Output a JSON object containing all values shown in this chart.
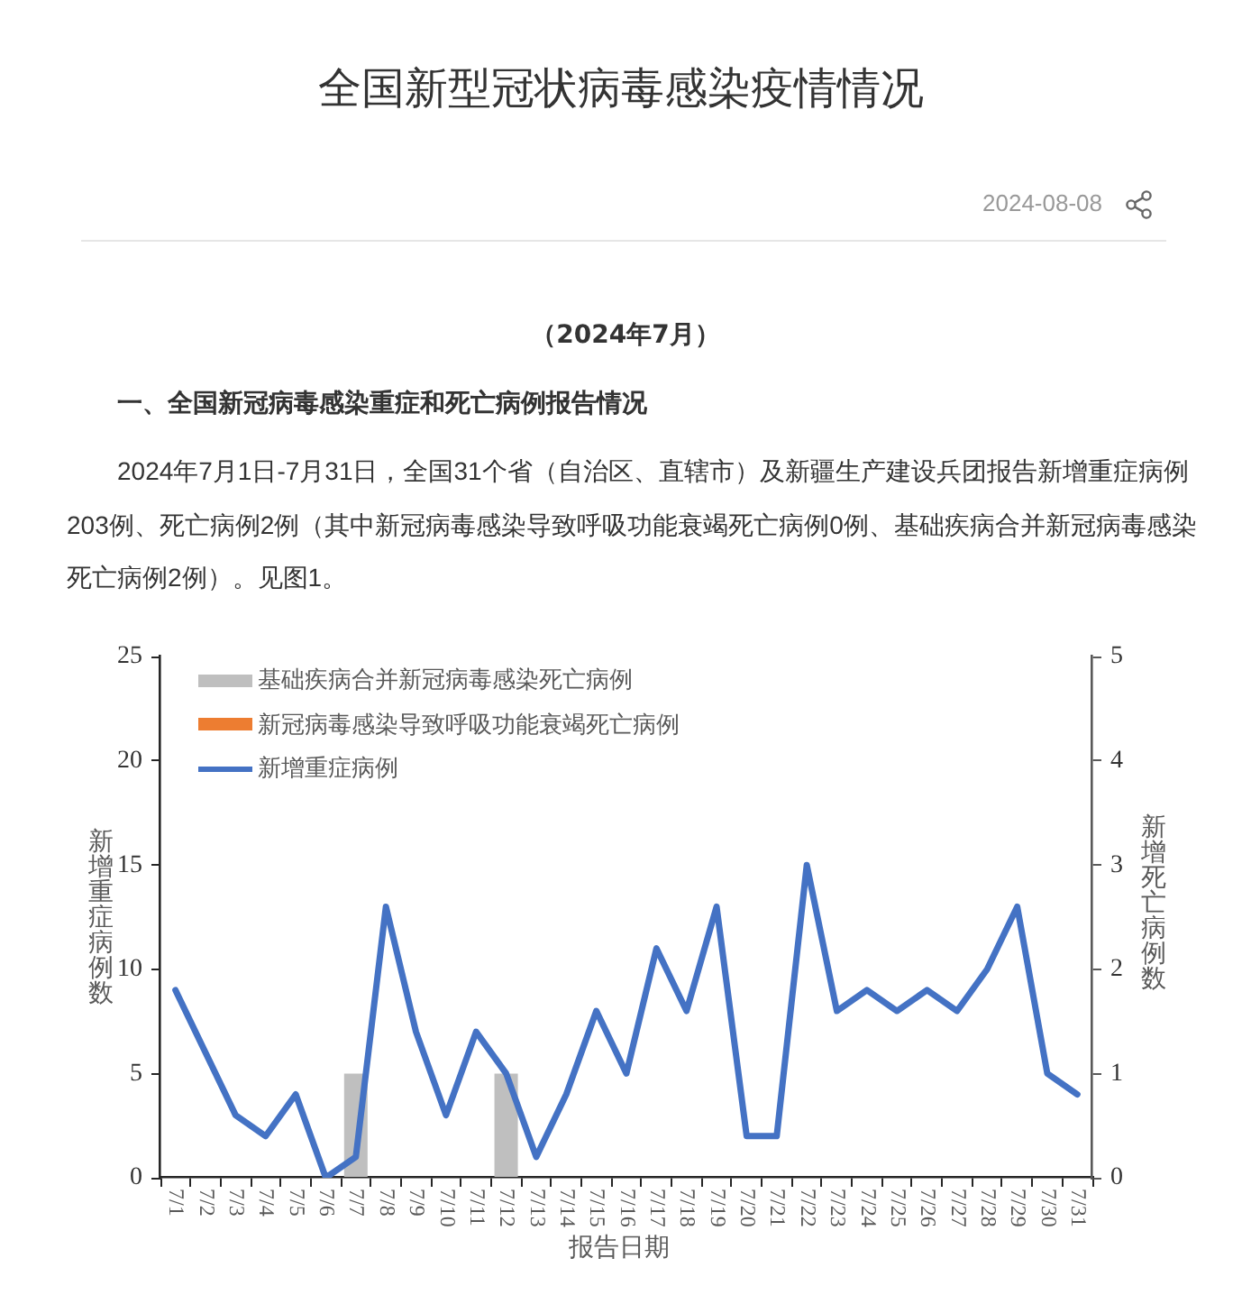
{
  "chart_data": {
    "type": "bar",
    "title": "全国新型冠状病毒感染疫情情况",
    "subtitle": "（2024年7月）",
    "annotations": [
      "2024-08-08",
      "一、全国新冠病毒感染重症和死亡病例报告情况",
      "2024年7月1日-7月31日，全国31个省（自治区、直辖市）及新疆生产建设兵团报告新增重症病例203例、死亡病例2例（其中新冠病毒感染导致呼吸功能衰竭死亡病例0例、基础疾病合并新冠病毒感染死亡病例2例）。见图1。"
    ],
    "xlabel": "报告日期",
    "ylabel": "新增重症病例数",
    "y2label": "新增死亡病例数",
    "categories": [
      "7/1",
      "7/2",
      "7/3",
      "7/4",
      "7/5",
      "7/6",
      "7/7",
      "7/8",
      "7/9",
      "7/10",
      "7/11",
      "7/12",
      "7/13",
      "7/14",
      "7/15",
      "7/16",
      "7/17",
      "7/18",
      "7/19",
      "7/20",
      "7/21",
      "7/22",
      "7/23",
      "7/24",
      "7/25",
      "7/26",
      "7/27",
      "7/28",
      "7/29",
      "7/30",
      "7/31"
    ],
    "series": [
      {
        "name": "基础疾病合并新冠病毒感染死亡病例",
        "axis": "y2",
        "color": "#bfbfbf",
        "values": [
          0,
          0,
          0,
          0,
          0,
          0,
          1,
          0,
          0,
          0,
          0,
          1,
          0,
          0,
          0,
          0,
          0,
          0,
          0,
          0,
          0,
          0,
          0,
          0,
          0,
          0,
          0,
          0,
          0,
          0,
          0
        ]
      },
      {
        "name": "新冠病毒感染导致呼吸功能衰竭死亡病例",
        "axis": "y2",
        "color": "#ed7d31",
        "values": [
          0,
          0,
          0,
          0,
          0,
          0,
          0,
          0,
          0,
          0,
          0,
          0,
          0,
          0,
          0,
          0,
          0,
          0,
          0,
          0,
          0,
          0,
          0,
          0,
          0,
          0,
          0,
          0,
          0,
          0,
          0
        ]
      },
      {
        "name": "新增重症病例",
        "type": "line",
        "color": "#4472c4",
        "values": [
          9,
          6,
          3,
          2,
          4,
          0,
          1,
          13,
          7,
          3,
          7,
          5,
          1,
          4,
          8,
          5,
          11,
          8,
          13,
          2,
          2,
          15,
          8,
          9,
          8,
          9,
          8,
          10,
          13,
          5,
          4
        ]
      }
    ],
    "stacked": true,
    "ylim": [
      0,
      25
    ],
    "yticks": [
      0,
      5,
      10,
      15,
      20,
      25
    ],
    "y2lim": [
      0,
      5
    ],
    "y2ticks": [
      0,
      1,
      2,
      3,
      4,
      5
    ],
    "grid": false,
    "legend": "top left",
    "marker": "none",
    "line_style": "solid"
  }
}
